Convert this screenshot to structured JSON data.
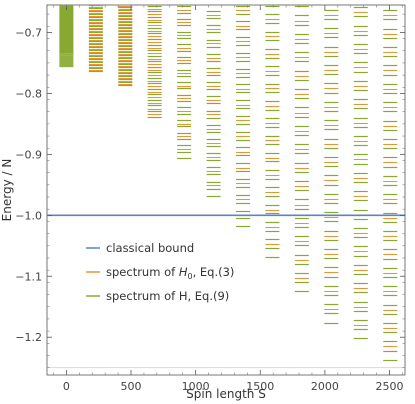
{
  "chart_data": {
    "type": "scatter",
    "title": "",
    "xlabel": "Spin length S",
    "ylabel": "Energy / N",
    "xlim": [
      -150,
      2620
    ],
    "ylim": [
      -1.262,
      -0.655
    ],
    "x_ticks": [
      0,
      500,
      1000,
      1500,
      2000,
      2500
    ],
    "x_tick_labels": [
      "0",
      "500",
      "1000",
      "1500",
      "2000",
      "2500"
    ],
    "y_ticks": [
      -0.7,
      -0.8,
      -0.9,
      -1.0,
      -1.1,
      -1.2
    ],
    "y_tick_labels": [
      "−0.7",
      "−0.8",
      "−0.9",
      "−1.0",
      "−1.1",
      "−1.2"
    ],
    "grid": false,
    "legend_position": "lower-left",
    "faint_reference_line_y": -1.25,
    "classical_bound_y": -1.0,
    "classical_bound_x_range": [
      -150,
      2620
    ],
    "spectrum_S_values": [
      0,
      228,
      456,
      683,
      911,
      1139,
      1367,
      1594,
      1822,
      2050,
      2278,
      2506
    ],
    "spectrum_min_energy": [
      -0.757,
      -0.764,
      -0.787,
      -0.838,
      -0.906,
      -0.968,
      -1.018,
      -1.068,
      -1.125,
      -1.176,
      -1.202,
      -1.237
    ],
    "spectrum_max_energy": [
      -0.655,
      -0.655,
      -0.655,
      -0.655,
      -0.655,
      -0.655,
      -0.655,
      -0.655,
      -0.655,
      -0.655,
      -0.655,
      -0.655
    ],
    "series": [
      {
        "name": "classical bound",
        "color": "#5b85c1",
        "kind": "line"
      },
      {
        "name": "spectrum of H0, Eq.(3)",
        "color": "#e6953a",
        "kind": "level-marks"
      },
      {
        "name": "spectrum of H, Eq.(9)",
        "color": "#89a832",
        "kind": "level-marks"
      }
    ]
  },
  "legend": {
    "items": [
      {
        "label": "classical bound",
        "sub": "",
        "rest": ""
      },
      {
        "label": "spectrum of ",
        "sub": "0",
        "rest": ", Eq.(3)"
      },
      {
        "label": "spectrum of H, Eq.(9)",
        "sub": "",
        "rest": ""
      }
    ],
    "italic_symbol": "H"
  }
}
